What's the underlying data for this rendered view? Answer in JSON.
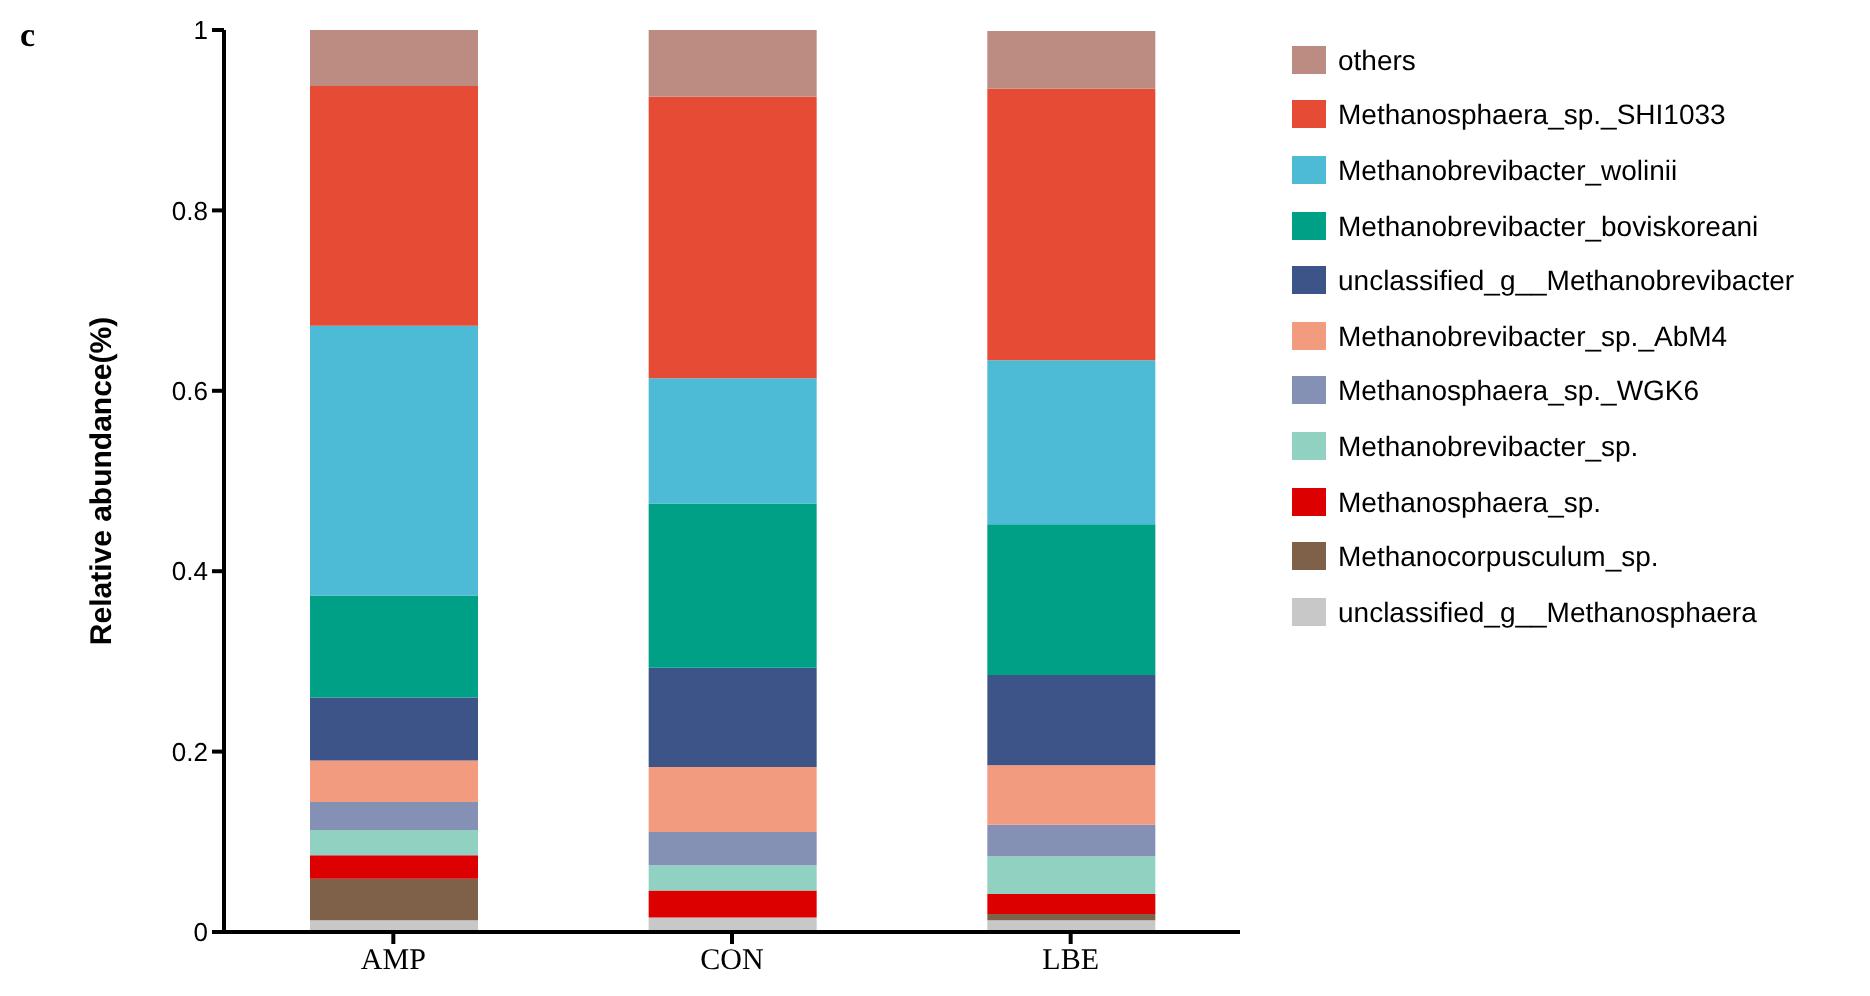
{
  "chart_data": {
    "type": "bar",
    "title": "c",
    "ylabel": "Relative abundance(%)",
    "categories": [
      "AMP",
      "CON",
      "LBE"
    ],
    "stacked": true,
    "ylim": [
      0,
      1
    ],
    "yticks": [
      0,
      0.2,
      0.4,
      0.6,
      0.8,
      1
    ],
    "grid": false,
    "legend": "top right",
    "series": [
      {
        "name": "unclassified_g__Methanosphaera",
        "color": "#c8c8c8",
        "values": [
          0.013,
          0.016,
          0.013
        ]
      },
      {
        "name": "Methanocorpusculum_sp.",
        "color": "#7e6148",
        "values": [
          0.046,
          0,
          0.007
        ]
      },
      {
        "name": "Methanosphaera_sp.",
        "color": "#dc0000",
        "values": [
          0.026,
          0.03,
          0.022
        ]
      },
      {
        "name": "Methanobrevibacter_sp.",
        "color": "#91d1c2",
        "values": [
          0.028,
          0.028,
          0.042
        ]
      },
      {
        "name": "Methanosphaera_sp._WGK6",
        "color": "#8491b4",
        "values": [
          0.031,
          0.037,
          0.035
        ]
      },
      {
        "name": "Methanobrevibacter_sp._AbM4",
        "color": "#f39b7f",
        "values": [
          0.046,
          0.072,
          0.066
        ]
      },
      {
        "name": "unclassified_g__Methanobrevibacter",
        "color": "#3c5488",
        "values": [
          0.07,
          0.11,
          0.1
        ]
      },
      {
        "name": "Methanobrevibacter_boviskoreani",
        "color": "#00a087",
        "values": [
          0.113,
          0.182,
          0.167
        ]
      },
      {
        "name": "Methanobrevibacter_wolinii",
        "color": "#4dbbd5",
        "values": [
          0.299,
          0.139,
          0.182
        ]
      },
      {
        "name": "Methanosphaera_sp._SHI1033",
        "color": "#e64b35",
        "values": [
          0.266,
          0.312,
          0.301
        ]
      },
      {
        "name": "others",
        "color": "#bc8b82",
        "values": [
          0.062,
          0.074,
          0.064
        ]
      }
    ]
  }
}
